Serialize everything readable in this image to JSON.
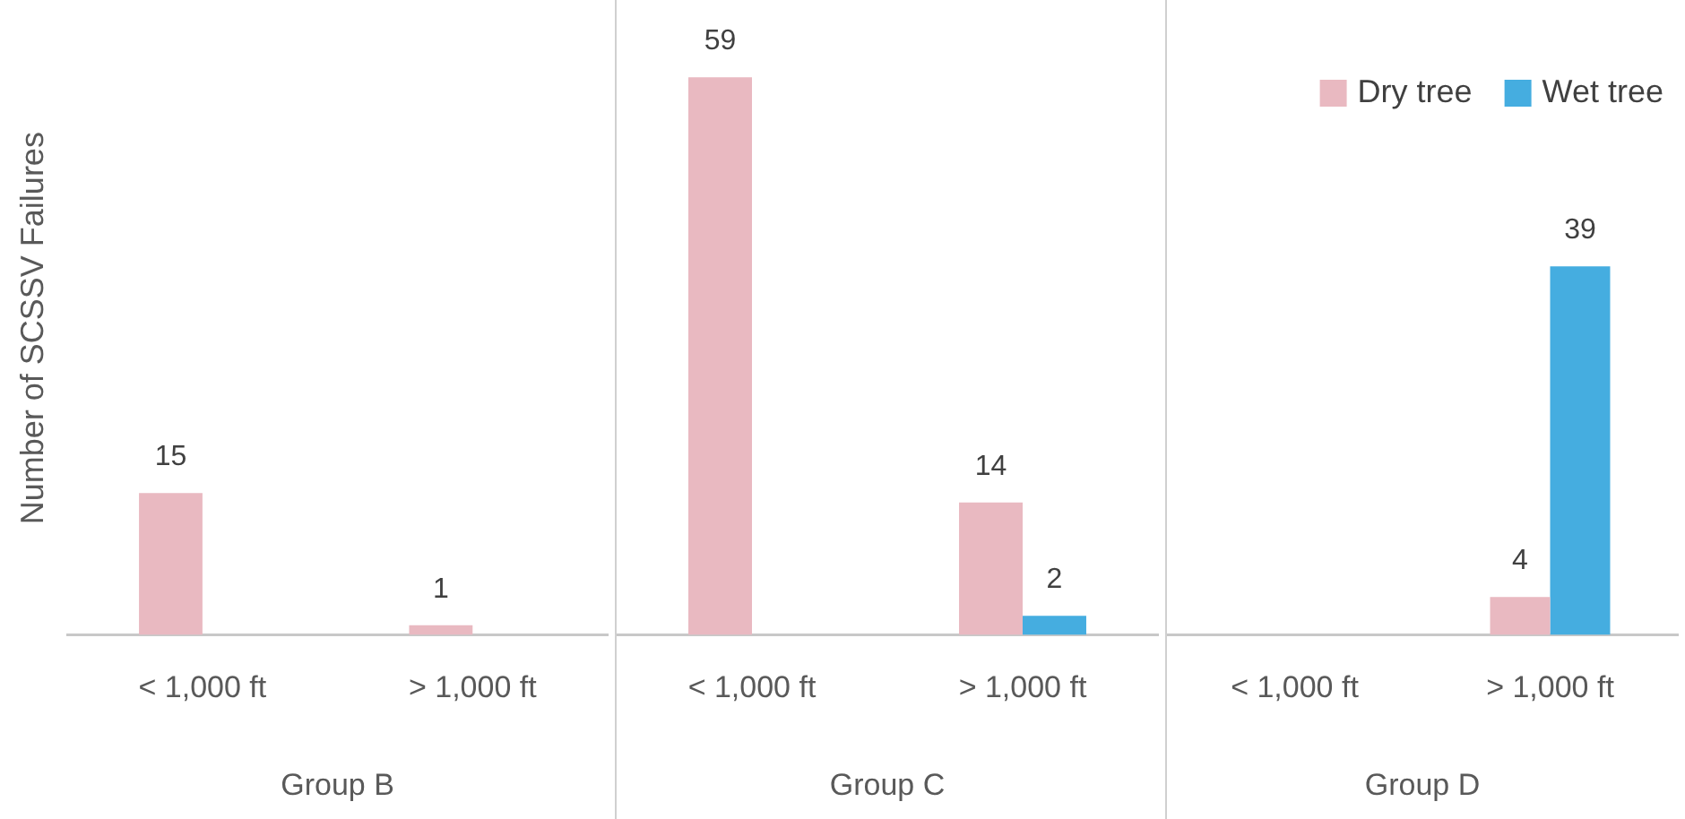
{
  "chart_data": [
    {
      "type": "bar",
      "ylabel": "Number of SCSSV Failures",
      "xlabel": "Group B",
      "categories": [
        "< 1,000 ft",
        "> 1,000 ft"
      ],
      "series": [
        {
          "color": "#e9b9c1",
          "values": [
            15,
            1
          ]
        },
        {
          "color": "#45ade0",
          "values": [
            null,
            null
          ]
        }
      ],
      "data_labels": true,
      "legend": false,
      "grid": false
    },
    {
      "type": "bar",
      "xlabel": "Group C",
      "categories": [
        "< 1,000 ft",
        "> 1,000 ft"
      ],
      "series": [
        {
          "color": "#e9b9c1",
          "values": [
            59,
            14
          ]
        },
        {
          "color": "#45ade0",
          "values": [
            null,
            2
          ]
        }
      ],
      "data_labels": true,
      "legend": false,
      "grid": false
    },
    {
      "type": "bar",
      "xlabel": "Group D",
      "categories": [
        "< 1,000 ft",
        "> 1,000 ft"
      ],
      "series": [
        {
          "name": "Dry tree",
          "color": "#e9b9c1",
          "values": [
            null,
            4
          ]
        },
        {
          "name": "Wet tree",
          "color": "#45ade0",
          "values": [
            null,
            39
          ]
        }
      ],
      "data_labels": true,
      "legend": "top right",
      "grid": false
    }
  ]
}
